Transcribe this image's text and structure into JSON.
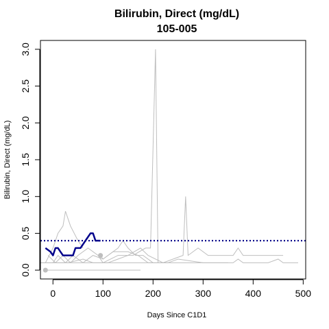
{
  "chart_data": {
    "type": "line",
    "title": "Bilirubin, Direct (mg/dL)",
    "subtitle": "105-005",
    "xlabel": "Days Since C1D1",
    "ylabel": "Bilirubin, Direct (mg/dL)",
    "xlim": [
      -25,
      505
    ],
    "ylim": [
      -0.12,
      3.12
    ],
    "xticks": [
      0,
      100,
      200,
      300,
      400,
      500
    ],
    "yticks": [
      0.0,
      0.5,
      1.0,
      1.5,
      2.0,
      2.5,
      3.0
    ],
    "reference_line": {
      "y": 0.4,
      "color": "#00008B",
      "style": "dotted"
    },
    "highlight_series": {
      "color": "#00008B",
      "points": [
        [
          -15,
          0.3
        ],
        [
          -5,
          0.25
        ],
        [
          0,
          0.2
        ],
        [
          5,
          0.3
        ],
        [
          10,
          0.3
        ],
        [
          15,
          0.25
        ],
        [
          20,
          0.2
        ],
        [
          30,
          0.2
        ],
        [
          40,
          0.2
        ],
        [
          45,
          0.3
        ],
        [
          55,
          0.3
        ],
        [
          65,
          0.4
        ],
        [
          75,
          0.5
        ],
        [
          80,
          0.5
        ],
        [
          85,
          0.4
        ],
        [
          95,
          0.4
        ]
      ]
    },
    "background_series": {
      "color": "#BEBEBE",
      "lines": [
        [
          [
            -15,
            0.1
          ],
          [
            0,
            0.3
          ],
          [
            10,
            0.5
          ],
          [
            20,
            0.6
          ],
          [
            25,
            0.8
          ],
          [
            35,
            0.6
          ],
          [
            50,
            0.4
          ],
          [
            60,
            0.3
          ]
        ],
        [
          [
            -10,
            0.2
          ],
          [
            5,
            0.1
          ],
          [
            20,
            0.2
          ],
          [
            35,
            0.1
          ],
          [
            50,
            0.2
          ],
          [
            70,
            0.3
          ],
          [
            90,
            0.2
          ],
          [
            100,
            0.1
          ],
          [
            130,
            0.2
          ],
          [
            160,
            0.2
          ],
          [
            185,
            0.3
          ],
          [
            195,
            0.3
          ],
          [
            205,
            3.0
          ],
          [
            210,
            0.1
          ]
        ],
        [
          [
            0,
            0.1
          ],
          [
            10,
            0.2
          ],
          [
            25,
            0.1
          ],
          [
            40,
            0.2
          ],
          [
            60,
            0.1
          ],
          [
            80,
            0.2
          ],
          [
            100,
            0.15
          ],
          [
            130,
            0.3
          ],
          [
            140,
            0.4
          ],
          [
            150,
            0.3
          ],
          [
            165,
            0.2
          ],
          [
            180,
            0.2
          ],
          [
            200,
            0.1
          ]
        ],
        [
          [
            -25,
            0.1
          ],
          [
            10,
            0.1
          ],
          [
            30,
            0.1
          ],
          [
            60,
            0.15
          ],
          [
            80,
            0.1
          ],
          [
            110,
            0.1
          ],
          [
            130,
            0.15
          ],
          [
            150,
            0.2
          ],
          [
            175,
            0.3
          ],
          [
            190,
            0.2
          ],
          [
            220,
            0.1
          ],
          [
            260,
            0.2
          ],
          [
            265,
            1.0
          ],
          [
            270,
            0.2
          ],
          [
            290,
            0.3
          ],
          [
            310,
            0.2
          ],
          [
            360,
            0.2
          ],
          [
            370,
            0.3
          ],
          [
            380,
            0.2
          ],
          [
            420,
            0.2
          ],
          [
            460,
            0.2
          ]
        ],
        [
          [
            -25,
            0.1
          ],
          [
            20,
            0.1
          ],
          [
            60,
            0.1
          ],
          [
            100,
            0.1
          ],
          [
            140,
            0.1
          ],
          [
            200,
            0.1
          ],
          [
            250,
            0.1
          ],
          [
            300,
            0.1
          ],
          [
            360,
            0.1
          ],
          [
            370,
            0.15
          ],
          [
            380,
            0.1
          ],
          [
            430,
            0.1
          ],
          [
            450,
            0.15
          ],
          [
            460,
            0.1
          ],
          [
            490,
            0.1
          ]
        ],
        [
          [
            95,
            0.2
          ],
          [
            100,
            0.15
          ],
          [
            110,
            0.2
          ],
          [
            120,
            0.25
          ],
          [
            150,
            0.25
          ],
          [
            170,
            0.2
          ],
          [
            190,
            0.1
          ],
          [
            230,
            0.1
          ],
          [
            250,
            0.15
          ],
          [
            300,
            0.1
          ],
          [
            350,
            0.1
          ]
        ],
        [
          [
            -15,
            0.0
          ],
          [
            10,
            0.0
          ],
          [
            60,
            0.0
          ],
          [
            120,
            0.0
          ],
          [
            175,
            0.0
          ]
        ]
      ],
      "points": [
        [
          -15,
          0.0
        ],
        [
          95,
          0.2
        ]
      ]
    }
  }
}
